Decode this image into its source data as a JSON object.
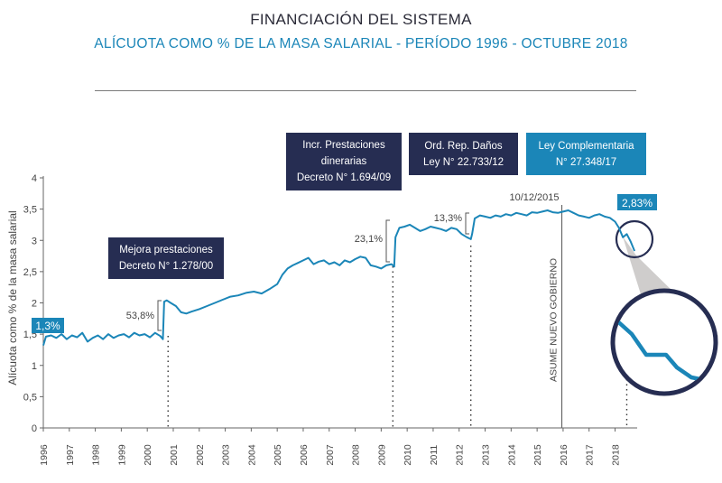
{
  "title": "FINANCIACIÓN DEL SISTEMA",
  "subtitle": "ALÍCUOTA COMO % DE LA MASA SALARIAL - PERÍODO 1996 - OCTUBRE 2018",
  "colors": {
    "line": "#1b86b8",
    "dark_box": "#262d52",
    "light_box": "#1b86b8"
  },
  "boxes": {
    "mejora": {
      "line1": "Mejora prestaciones",
      "line2": "Decreto N° 1.278/00"
    },
    "incr": {
      "line1": "Incr. Prestaciones",
      "line2": "dinerarias",
      "line3": "Decreto N° 1.694/09"
    },
    "ord": {
      "line1": "Ord. Rep. Daños",
      "line2": "Ley N° 22.733/12"
    },
    "ley": {
      "line1": "Ley Complementaria",
      "line2": "N° 27.348/17"
    }
  },
  "chart_data": {
    "type": "line",
    "title": "ALÍCUOTA COMO % DE LA MASA SALARIAL - PERÍODO 1996 - OCTUBRE 2018",
    "xlabel": "",
    "ylabel": "Alícuota como % de la masa salarial",
    "ylim": [
      0,
      4
    ],
    "xlim": [
      1996,
      2018.85
    ],
    "y_ticks": [
      "0",
      "0,5",
      "1",
      "1,5",
      "2",
      "2,5",
      "3",
      "3,5",
      "4"
    ],
    "x_ticks": [
      "1996",
      "1997",
      "1998",
      "1999",
      "2000",
      "2001",
      "2002",
      "2003",
      "2004",
      "2005",
      "2006",
      "2007",
      "2008",
      "2009",
      "2010",
      "2011",
      "2012",
      "2013",
      "2014",
      "2015",
      "2016",
      "2017",
      "2018"
    ],
    "series": [
      {
        "name": "Alícuota",
        "x": [
          1996.0,
          1996.1,
          1996.3,
          1996.5,
          1996.7,
          1996.9,
          1997.1,
          1997.3,
          1997.5,
          1997.7,
          1997.9,
          1998.1,
          1998.3,
          1998.5,
          1998.7,
          1998.9,
          1999.1,
          1999.3,
          1999.5,
          1999.7,
          1999.9,
          2000.1,
          2000.3,
          2000.5,
          2000.6,
          2000.65,
          2000.75,
          2000.9,
          2001.1,
          2001.3,
          2001.5,
          2001.7,
          2002.0,
          2002.3,
          2002.6,
          2002.9,
          2003.2,
          2003.5,
          2003.8,
          2004.1,
          2004.4,
          2004.7,
          2005.0,
          2005.2,
          2005.4,
          2005.6,
          2005.8,
          2006.0,
          2006.2,
          2006.4,
          2006.6,
          2006.8,
          2007.0,
          2007.2,
          2007.4,
          2007.6,
          2007.8,
          2008.0,
          2008.2,
          2008.4,
          2008.6,
          2008.8,
          2009.0,
          2009.2,
          2009.4,
          2009.5,
          2009.55,
          2009.7,
          2009.9,
          2010.1,
          2010.3,
          2010.5,
          2010.7,
          2010.9,
          2011.1,
          2011.3,
          2011.5,
          2011.7,
          2011.9,
          2012.1,
          2012.3,
          2012.45,
          2012.5,
          2012.6,
          2012.8,
          2013.0,
          2013.2,
          2013.4,
          2013.6,
          2013.8,
          2014.0,
          2014.2,
          2014.4,
          2014.6,
          2014.8,
          2015.0,
          2015.2,
          2015.4,
          2015.6,
          2015.8,
          2016.0,
          2016.2,
          2016.4,
          2016.6,
          2016.8,
          2017.0,
          2017.2,
          2017.4,
          2017.6,
          2017.8,
          2018.0,
          2018.15,
          2018.3,
          2018.45,
          2018.6,
          2018.75
        ],
        "y": [
          1.32,
          1.46,
          1.48,
          1.44,
          1.5,
          1.42,
          1.48,
          1.45,
          1.52,
          1.38,
          1.44,
          1.48,
          1.42,
          1.5,
          1.44,
          1.48,
          1.5,
          1.45,
          1.52,
          1.48,
          1.5,
          1.45,
          1.52,
          1.47,
          1.42,
          2.02,
          2.04,
          2.0,
          1.95,
          1.85,
          1.83,
          1.86,
          1.9,
          1.95,
          2.0,
          2.05,
          2.1,
          2.12,
          2.16,
          2.18,
          2.15,
          2.22,
          2.3,
          2.45,
          2.55,
          2.6,
          2.64,
          2.68,
          2.72,
          2.62,
          2.66,
          2.68,
          2.62,
          2.65,
          2.6,
          2.68,
          2.65,
          2.7,
          2.74,
          2.72,
          2.6,
          2.58,
          2.55,
          2.6,
          2.62,
          2.58,
          3.05,
          3.2,
          3.22,
          3.25,
          3.2,
          3.15,
          3.18,
          3.22,
          3.2,
          3.18,
          3.15,
          3.2,
          3.18,
          3.1,
          3.05,
          3.02,
          3.1,
          3.35,
          3.4,
          3.38,
          3.36,
          3.4,
          3.38,
          3.42,
          3.4,
          3.44,
          3.42,
          3.4,
          3.45,
          3.44,
          3.46,
          3.48,
          3.45,
          3.44,
          3.46,
          3.48,
          3.44,
          3.4,
          3.38,
          3.36,
          3.4,
          3.42,
          3.38,
          3.36,
          3.3,
          3.2,
          3.05,
          3.1,
          2.98,
          2.83
        ]
      }
    ],
    "annotations": {
      "start_label": "1,3%",
      "end_label": "2,83%",
      "jump_2000": "53,8%",
      "jump_2009": "23,1%",
      "jump_2012": "13,3%",
      "date_label": "10/12/2015",
      "vertical_label": "ASUME NUEVO GOBIERNO"
    }
  }
}
